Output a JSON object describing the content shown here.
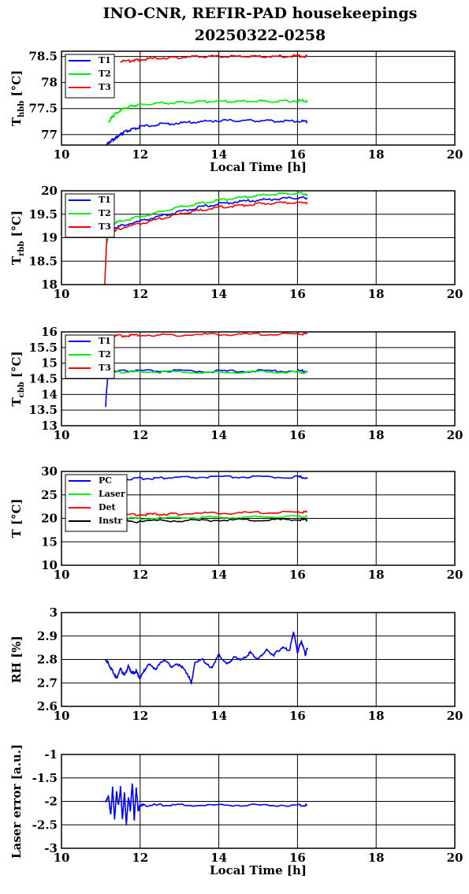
{
  "title_line1": "INO-CNR, REFIR-PAD housekeepings",
  "title_line2": "20250322-0258",
  "chart_data": [
    {
      "type": "line",
      "xlim": [
        10,
        20
      ],
      "ylim": [
        76.8,
        78.6
      ],
      "xticks": [
        "10",
        "12",
        "14",
        "16",
        "18",
        "20"
      ],
      "yticks": [
        77,
        77.5,
        78,
        78.5
      ],
      "ylabel": {
        "main": "T",
        "sub": "hbb",
        "tail": " [°C]"
      },
      "xlabel": "Local Time [h]",
      "grid": true,
      "legend": "top-left",
      "series": [
        {
          "name": "T1",
          "color": "#0000ff",
          "x": [
            11.12,
            11.2,
            11.3,
            11.4,
            11.5,
            11.6,
            11.8,
            12.0,
            12.5,
            13.0,
            13.5,
            14.0,
            14.5,
            15.0,
            15.5,
            16.0,
            16.25
          ],
          "y": [
            76.78,
            76.85,
            76.9,
            76.95,
            77.0,
            77.05,
            77.1,
            77.15,
            77.2,
            77.22,
            77.25,
            77.27,
            77.27,
            77.27,
            77.26,
            77.26,
            77.25
          ]
        },
        {
          "name": "T2",
          "color": "#00ee00",
          "x": [
            11.2,
            11.3,
            11.4,
            11.6,
            11.8,
            12.0,
            12.5,
            13.0,
            13.5,
            14.0,
            14.5,
            15.0,
            15.5,
            16.0,
            16.25
          ],
          "y": [
            77.25,
            77.35,
            77.42,
            77.5,
            77.55,
            77.58,
            77.6,
            77.62,
            77.63,
            77.64,
            77.64,
            77.64,
            77.64,
            77.65,
            77.65
          ]
        },
        {
          "name": "T3",
          "color": "#ff0000",
          "x": [
            11.5,
            11.8,
            12.0,
            12.5,
            13.0,
            13.5,
            14.0,
            14.5,
            15.0,
            15.5,
            16.0,
            16.25
          ],
          "y": [
            78.4,
            78.42,
            78.44,
            78.47,
            78.48,
            78.5,
            78.5,
            78.5,
            78.5,
            78.5,
            78.51,
            78.5
          ]
        }
      ]
    },
    {
      "type": "line",
      "xlim": [
        10,
        20
      ],
      "ylim": [
        18,
        20
      ],
      "xticks": [
        "10",
        "12",
        "14",
        "16",
        "18",
        "20"
      ],
      "yticks": [
        18,
        18.5,
        19,
        19.5,
        20
      ],
      "ylabel": {
        "main": "T",
        "sub": "rbb",
        "tail": " [°C]"
      },
      "xlabel": "",
      "grid": true,
      "legend": "top-left",
      "series": [
        {
          "name": "T1",
          "color": "#0000ff",
          "x": [
            11.15,
            11.2,
            11.3,
            11.5,
            12.0,
            12.5,
            13.0,
            13.5,
            14.0,
            14.5,
            15.0,
            15.5,
            16.0,
            16.25
          ],
          "y": [
            18.9,
            19.1,
            19.2,
            19.25,
            19.35,
            19.45,
            19.55,
            19.65,
            19.72,
            19.77,
            19.8,
            19.83,
            19.85,
            19.85
          ]
        },
        {
          "name": "T2",
          "color": "#00ee00",
          "x": [
            11.15,
            11.2,
            11.3,
            11.5,
            12.0,
            12.5,
            13.0,
            13.5,
            14.0,
            14.5,
            15.0,
            15.5,
            16.0,
            16.25
          ],
          "y": [
            18.9,
            19.2,
            19.3,
            19.35,
            19.45,
            19.55,
            19.65,
            19.73,
            19.8,
            19.85,
            19.9,
            19.93,
            19.95,
            19.93
          ]
        },
        {
          "name": "T3",
          "color": "#ff0000",
          "x": [
            11.1,
            11.15,
            11.2,
            11.3,
            11.5,
            12.0,
            12.5,
            13.0,
            13.5,
            14.0,
            14.5,
            15.0,
            15.5,
            16.0,
            16.25
          ],
          "y": [
            18.0,
            19.0,
            19.1,
            19.15,
            19.2,
            19.3,
            19.4,
            19.5,
            19.58,
            19.65,
            19.68,
            19.72,
            19.74,
            19.75,
            19.75
          ]
        }
      ]
    },
    {
      "type": "line",
      "xlim": [
        10,
        20
      ],
      "ylim": [
        13,
        16
      ],
      "xticks": [
        "10",
        "12",
        "14",
        "16",
        "18",
        "20"
      ],
      "yticks": [
        13,
        13.5,
        14,
        14.5,
        15,
        15.5,
        16
      ],
      "ylabel": {
        "main": "T",
        "sub": "cbb",
        "tail": " [°C]"
      },
      "xlabel": "",
      "grid": true,
      "legend": "top-left",
      "series": [
        {
          "name": "T1",
          "color": "#0000ff",
          "x": [
            11.12,
            11.15,
            11.18,
            11.25,
            11.5,
            12.0,
            13.0,
            14.0,
            15.0,
            16.0,
            16.25
          ],
          "y": [
            13.6,
            14.2,
            14.6,
            14.72,
            14.75,
            14.75,
            14.75,
            14.74,
            14.75,
            14.75,
            14.74
          ]
        },
        {
          "name": "T2",
          "color": "#00ee00",
          "x": [
            11.12,
            11.2,
            11.5,
            12.0,
            13.0,
            14.0,
            15.0,
            16.0,
            16.25
          ],
          "y": [
            14.6,
            14.72,
            14.72,
            14.72,
            14.72,
            14.7,
            14.72,
            14.72,
            14.7
          ]
        },
        {
          "name": "T3",
          "color": "#ff0000",
          "x": [
            11.12,
            11.3,
            11.6,
            12.0,
            13.0,
            14.0,
            15.0,
            16.0,
            16.25
          ],
          "y": [
            15.85,
            15.88,
            15.88,
            15.9,
            15.9,
            15.92,
            15.92,
            15.93,
            15.93
          ]
        }
      ]
    },
    {
      "type": "line",
      "xlim": [
        10,
        20
      ],
      "ylim": [
        10,
        30
      ],
      "xticks": [
        "10",
        "12",
        "14",
        "16",
        "18",
        "20"
      ],
      "yticks": [
        10,
        15,
        20,
        25,
        30
      ],
      "ylabel": {
        "main": "T [°C]",
        "sub": "",
        "tail": ""
      },
      "xlabel": "",
      "grid": true,
      "legend": "top-left",
      "series": [
        {
          "name": "PC",
          "color": "#0000ff",
          "x": [
            11.12,
            11.5,
            12.0,
            12.5,
            13.0,
            14.0,
            15.0,
            16.0,
            16.25
          ],
          "y": [
            28.0,
            28.3,
            28.5,
            28.6,
            28.7,
            28.8,
            28.8,
            28.8,
            28.7
          ]
        },
        {
          "name": "Laser",
          "color": "#00ee00",
          "x": [
            11.12,
            11.5,
            12.0,
            13.0,
            14.0,
            15.0,
            16.0,
            16.25
          ],
          "y": [
            19.8,
            19.9,
            20.0,
            20.1,
            20.2,
            20.3,
            20.4,
            20.4
          ]
        },
        {
          "name": "Det",
          "color": "#ff0000",
          "x": [
            11.12,
            11.5,
            12.0,
            12.5,
            13.0,
            14.0,
            15.0,
            16.0,
            16.25
          ],
          "y": [
            20.5,
            20.7,
            20.8,
            20.9,
            21.0,
            21.1,
            21.2,
            21.3,
            21.3
          ]
        },
        {
          "name": "Instr",
          "color": "#000000",
          "x": [
            11.12,
            11.5,
            12.0,
            13.0,
            14.0,
            15.0,
            16.0,
            16.25
          ],
          "y": [
            19.2,
            19.3,
            19.4,
            19.5,
            19.6,
            19.7,
            19.7,
            19.7
          ]
        }
      ]
    },
    {
      "type": "line",
      "xlim": [
        10,
        20
      ],
      "ylim": [
        2.6,
        3
      ],
      "xticks": [
        "10",
        "12",
        "14",
        "16",
        "18",
        "20"
      ],
      "yticks": [
        2.6,
        2.7,
        2.8,
        2.9,
        3
      ],
      "ylabel": {
        "main": "RH [%]",
        "sub": "",
        "tail": ""
      },
      "xlabel": "",
      "grid": true,
      "legend": "none",
      "series": [
        {
          "name": "",
          "color": "#0000ff",
          "x": [
            11.12,
            11.2,
            11.3,
            11.4,
            11.5,
            11.6,
            11.7,
            11.8,
            11.9,
            12.0,
            12.2,
            12.4,
            12.6,
            12.8,
            13.0,
            13.2,
            13.3,
            13.4,
            13.6,
            13.8,
            14.0,
            14.2,
            14.4,
            14.6,
            14.8,
            15.0,
            15.2,
            15.4,
            15.6,
            15.8,
            15.9,
            16.0,
            16.1,
            16.2,
            16.25
          ],
          "y": [
            2.8,
            2.78,
            2.75,
            2.72,
            2.76,
            2.73,
            2.77,
            2.74,
            2.75,
            2.72,
            2.78,
            2.76,
            2.8,
            2.77,
            2.78,
            2.74,
            2.7,
            2.79,
            2.8,
            2.76,
            2.82,
            2.78,
            2.81,
            2.8,
            2.83,
            2.8,
            2.84,
            2.82,
            2.85,
            2.84,
            2.92,
            2.83,
            2.88,
            2.82,
            2.85
          ]
        }
      ]
    },
    {
      "type": "line",
      "xlim": [
        10,
        20
      ],
      "ylim": [
        -3,
        -1
      ],
      "xticks": [
        "10",
        "12",
        "14",
        "16",
        "18",
        "20"
      ],
      "yticks": [
        -3,
        -2.5,
        -2,
        -1.5,
        -1
      ],
      "ylabel": {
        "main": "Laser error [a.u.]",
        "sub": "",
        "tail": ""
      },
      "xlabel": "Local Time [h]",
      "grid": true,
      "legend": "none",
      "series": [
        {
          "name": "",
          "color": "#0000ff",
          "x": [
            11.12,
            11.2,
            11.25,
            11.3,
            11.35,
            11.4,
            11.45,
            11.5,
            11.55,
            11.6,
            11.65,
            11.7,
            11.75,
            11.8,
            11.85,
            11.9,
            11.95,
            12.0,
            12.1,
            12.5,
            13.0,
            14.0,
            15.0,
            16.0,
            16.25
          ],
          "y": [
            -2.0,
            -1.9,
            -2.3,
            -1.7,
            -2.4,
            -1.8,
            -2.1,
            -1.7,
            -2.4,
            -1.8,
            -2.5,
            -1.9,
            -2.2,
            -1.6,
            -2.4,
            -1.7,
            -2.2,
            -2.08,
            -2.08,
            -2.08,
            -2.08,
            -2.08,
            -2.08,
            -2.08,
            -2.08
          ]
        }
      ]
    }
  ]
}
